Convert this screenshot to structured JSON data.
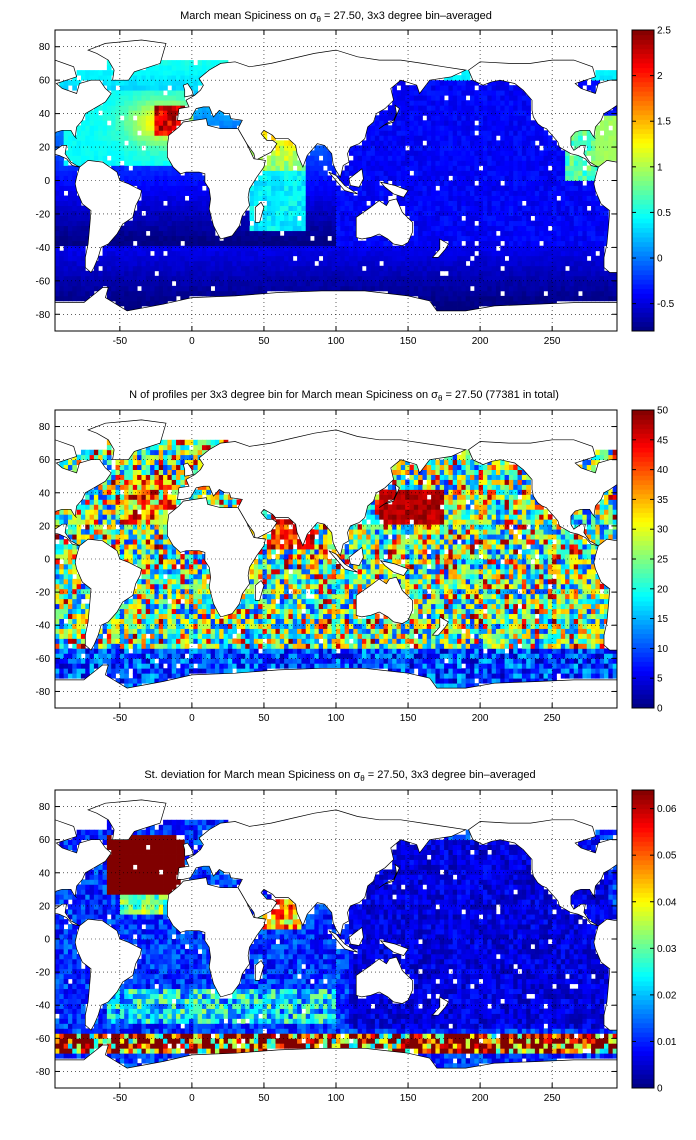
{
  "chart_data": [
    {
      "type": "heatmap",
      "title": {
        "pre": "March mean Spiciness on ",
        "sym": "σ",
        "sub": "θ",
        "post": " = 27.50, 3x3 degree bin–averaged"
      },
      "xlim": [
        -95,
        295
      ],
      "ylim": [
        -90,
        90
      ],
      "xticks": [
        -50,
        0,
        50,
        100,
        150,
        200,
        250
      ],
      "yticks": [
        -80,
        -60,
        -40,
        -20,
        0,
        20,
        40,
        60,
        80
      ],
      "grid": true,
      "colorbar": {
        "range": [
          -0.8,
          2.5
        ],
        "ticks": [
          "-0.5",
          "0",
          "0.5",
          "1",
          "1.5",
          "2",
          "2.5"
        ],
        "tick_values": [
          -0.5,
          0,
          0.5,
          1,
          1.5,
          2,
          2.5
        ]
      },
      "colormap": "jet"
    },
    {
      "type": "heatmap",
      "title": {
        "pre": "N of profiles per 3x3 degree bin for March mean Spiciness on ",
        "sym": "σ",
        "sub": "θ",
        "post": " = 27.50 (77381 in total)"
      },
      "xlim": [
        -95,
        295
      ],
      "ylim": [
        -90,
        90
      ],
      "xticks": [
        -50,
        0,
        50,
        100,
        150,
        200,
        250
      ],
      "yticks": [
        -80,
        -60,
        -40,
        -20,
        0,
        20,
        40,
        60,
        80
      ],
      "grid": true,
      "colorbar": {
        "range": [
          0,
          50
        ],
        "ticks": [
          "0",
          "5",
          "10",
          "15",
          "20",
          "25",
          "30",
          "35",
          "40",
          "45",
          "50"
        ],
        "tick_values": [
          0,
          5,
          10,
          15,
          20,
          25,
          30,
          35,
          40,
          45,
          50
        ]
      },
      "colormap": "jet"
    },
    {
      "type": "heatmap",
      "title": {
        "pre": "St. deviation for March mean Spiciness on ",
        "sym": "σ",
        "sub": "θ",
        "post": " = 27.50, 3x3 degree bin–averaged"
      },
      "xlim": [
        -95,
        295
      ],
      "ylim": [
        -90,
        90
      ],
      "xticks": [
        -50,
        0,
        50,
        100,
        150,
        200,
        250
      ],
      "yticks": [
        -80,
        -60,
        -40,
        -20,
        0,
        20,
        40,
        60,
        80
      ],
      "grid": true,
      "colorbar": {
        "range": [
          0,
          0.064
        ],
        "ticks": [
          "0",
          "0.01",
          "0.02",
          "0.03",
          "0.04",
          "0.05",
          "0.06"
        ],
        "tick_values": [
          0,
          0.01,
          0.02,
          0.03,
          0.04,
          0.05,
          0.06
        ]
      },
      "colormap": "jet"
    }
  ]
}
